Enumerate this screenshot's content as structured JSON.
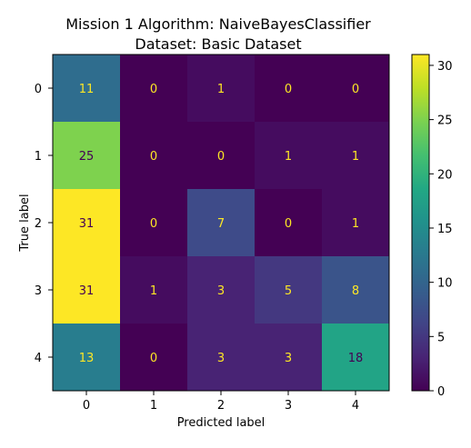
{
  "chart_data": {
    "type": "heatmap",
    "title": "Mission 1 Algorithm: NaiveBayesClassifier",
    "subtitle": "Dataset: Basic Dataset",
    "xlabel": "Predicted label",
    "ylabel": "True label",
    "x_categories": [
      "0",
      "1",
      "2",
      "3",
      "4"
    ],
    "y_categories": [
      "0",
      "1",
      "2",
      "3",
      "4"
    ],
    "matrix": [
      [
        11,
        0,
        1,
        0,
        0
      ],
      [
        25,
        0,
        0,
        1,
        1
      ],
      [
        31,
        0,
        7,
        0,
        1
      ],
      [
        31,
        1,
        3,
        5,
        8
      ],
      [
        13,
        0,
        3,
        3,
        18
      ]
    ],
    "colormap": "viridis",
    "value_range": [
      0,
      31
    ],
    "colorbar_ticks": [
      0,
      5,
      10,
      15,
      20,
      25,
      30
    ],
    "colors": {
      "text_on_dark": "#fde725",
      "text_on_light": "#440154"
    }
  }
}
